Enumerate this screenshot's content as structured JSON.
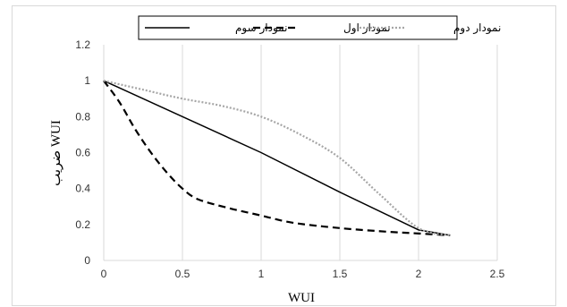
{
  "chart_data": {
    "type": "line",
    "xlabel": "WUI",
    "ylabel": "ضریب WUI",
    "xlim": [
      0,
      2.5
    ],
    "ylim": [
      0,
      1.2
    ],
    "xticks": [
      "0",
      "0.5",
      "1",
      "1.5",
      "2",
      "2.5"
    ],
    "yticks": [
      "0",
      "0.2",
      "0.4",
      "0.6",
      "0.8",
      "1",
      "1.2"
    ],
    "grid": "vertical",
    "legend_position": "top",
    "series": [
      {
        "name": "نمودار سوم",
        "style": "solid",
        "color": "#000000",
        "x": [
          0,
          1,
          1.5,
          2,
          2.2
        ],
        "y": [
          1,
          0.6,
          0.38,
          0.17,
          0.14
        ]
      },
      {
        "name": "نمودار اول",
        "style": "dashed",
        "color": "#000000",
        "x": [
          0,
          0.1,
          0.2,
          0.3,
          0.4,
          0.5,
          0.6,
          0.8,
          1,
          1.2,
          1.5,
          1.8,
          2,
          2.2
        ],
        "y": [
          1,
          0.88,
          0.73,
          0.6,
          0.49,
          0.4,
          0.34,
          0.29,
          0.25,
          0.21,
          0.18,
          0.16,
          0.15,
          0.14
        ]
      },
      {
        "name": "نمودار دوم",
        "style": "dotted",
        "color": "#a6a6a6",
        "x": [
          0,
          0.25,
          0.5,
          0.75,
          1,
          1.25,
          1.5,
          1.75,
          2,
          2.2
        ],
        "y": [
          1,
          0.95,
          0.9,
          0.86,
          0.8,
          0.7,
          0.57,
          0.37,
          0.18,
          0.14
        ]
      }
    ]
  }
}
